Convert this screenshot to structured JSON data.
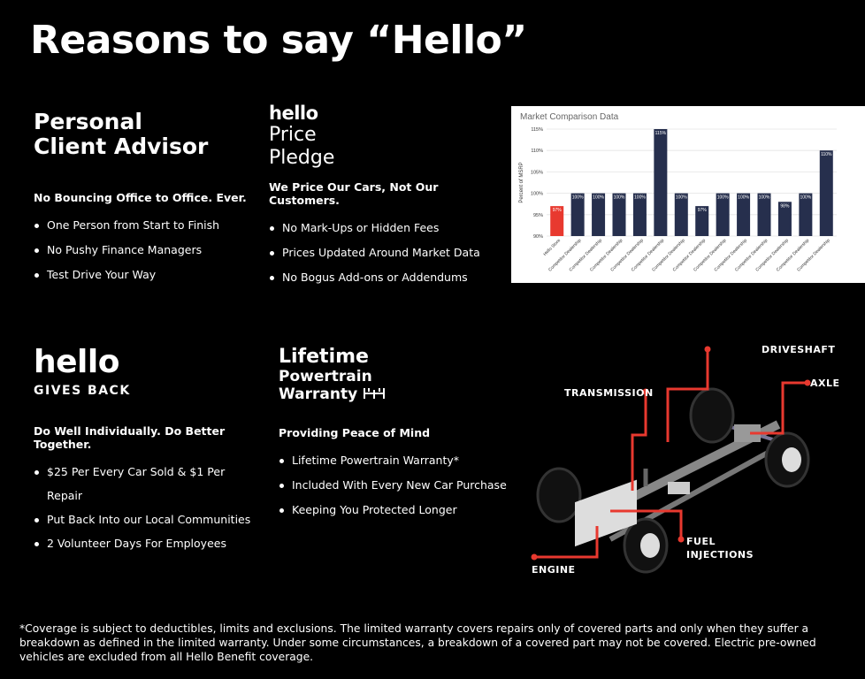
{
  "title": "Reasons to say “Hello”",
  "sections": [
    {
      "title_lines": [
        "Personal",
        "Client Advisor"
      ],
      "subtitle": "No Bouncing Office to Office. Ever.",
      "bullets": [
        "One Person from Start to Finish",
        "No Pushy Finance Managers",
        "Test Drive Your Way"
      ]
    },
    {
      "logo": "hello",
      "title_lines": [
        "Price",
        "Pledge"
      ],
      "subtitle": "We Price Our Cars, Not Our Customers.",
      "bullets": [
        "No Mark-Ups or Hidden Fees",
        "Prices Updated Around Market Data",
        "No Bogus Add-ons or Addendums"
      ]
    },
    {
      "logo": "hello",
      "logo_sub": "GIVES BACK",
      "subtitle": "Do Well Individually. Do Better Together.",
      "bullets": [
        "$25 Per Every Car Sold & $1 Per Repair",
        "Put Back Into our Local Communities",
        "2 Volunteer Days For Employees"
      ]
    },
    {
      "title_lines": [
        "Lifetime",
        "Powertrain",
        "Warranty"
      ],
      "title_icon": "drivetrain-icon",
      "subtitle": "Providing Peace of Mind",
      "bullets": [
        "Lifetime Powertrain Warranty*",
        "Included With Every New Car Purchase",
        "Keeping You Protected Longer"
      ]
    }
  ],
  "chart_data": {
    "type": "bar",
    "title": "Market Comparison Data",
    "ylabel": "Percent of MSRP",
    "xlabel": "",
    "ylim": [
      90,
      115
    ],
    "yticks": [
      "90%",
      "95%",
      "100%",
      "105%",
      "110%",
      "115%"
    ],
    "grid": true,
    "categories": [
      "Hello Store",
      "Competitor Dealership",
      "Competitor Dealership",
      "Competitor Dealership",
      "Competitor Dealership",
      "Competitor Dealership",
      "Competitor Dealership",
      "Competitor Dealership",
      "Competitor Dealership",
      "Competitor Dealership",
      "Competitor Dealership",
      "Competitor Dealership",
      "Competitor Dealership",
      "Competitor Dealership"
    ],
    "values": [
      97,
      100,
      100,
      100,
      100,
      115,
      100,
      97,
      100,
      100,
      100,
      98,
      100,
      110
    ],
    "colors": {
      "highlight": "#e8392f",
      "default": "#262f4d"
    }
  },
  "diagram_labels": {
    "driveshaft": "DRIVESHAFT",
    "axle": "AXLE",
    "transmission": "TRANSMISSION",
    "fuel": [
      "FUEL",
      "INJECTIONS"
    ],
    "engine": "ENGINE"
  },
  "accent": "#e8392f",
  "footnote": "*Coverage is subject to deductibles, limits and exclusions. The limited warranty covers repairs only of covered parts and only when they suffer a breakdown as defined in the limited warranty. Under some circumstances, a breakdown of a covered part may not be covered. Electric pre-owned vehicles are excluded from all Hello Benefit coverage."
}
